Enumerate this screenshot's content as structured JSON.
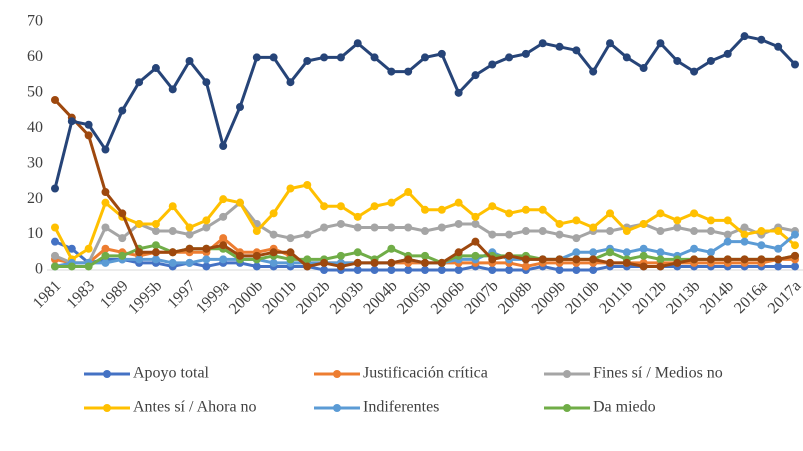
{
  "chart_data": {
    "type": "line",
    "categories": [
      "1981",
      null,
      "1983",
      null,
      "1989",
      null,
      "1995b",
      null,
      "1997",
      null,
      "1999a",
      null,
      "2000b",
      null,
      "2001b",
      null,
      "2002b",
      null,
      "2003b",
      null,
      "2004b",
      null,
      "2005b",
      null,
      "2006b",
      null,
      "2007b",
      null,
      "2008b",
      null,
      "2009b",
      null,
      "2010b",
      null,
      "2011b",
      null,
      "2012b",
      null,
      "2013b",
      null,
      "2014b",
      null,
      "2016a",
      null,
      "2017a"
    ],
    "ylim": [
      0,
      70
    ],
    "yticks": [
      0,
      10,
      20,
      30,
      40,
      50,
      60,
      70
    ],
    "grid": false,
    "legend": "bottom",
    "series": [
      {
        "name": "Apoyo total",
        "color": "#4472c4",
        "values": [
          8,
          6,
          2,
          3,
          3,
          2,
          2,
          1,
          2,
          1,
          2,
          2,
          1,
          1,
          1,
          1,
          0,
          0,
          0,
          0,
          0,
          0,
          0,
          0,
          0,
          1,
          0,
          0,
          0,
          1,
          0,
          0,
          0,
          1,
          1,
          1,
          1,
          1,
          1,
          1,
          1,
          1,
          1,
          1,
          1
        ]
      },
      {
        "name": "Justificación crítica",
        "color": "#ed7d31",
        "values": [
          3,
          2,
          2,
          6,
          5,
          4,
          5,
          5,
          5,
          5,
          9,
          5,
          5,
          6,
          4,
          2,
          2,
          2,
          2,
          2,
          2,
          2,
          2,
          2,
          2,
          2,
          2,
          2,
          1,
          2,
          2,
          2,
          2,
          2,
          2,
          2,
          2,
          2,
          2,
          2,
          2,
          2,
          2,
          3,
          3
        ]
      },
      {
        "name": "Fines sí / Medios no",
        "color": "#a5a5a5",
        "values": [
          4,
          2,
          2,
          12,
          9,
          13,
          11,
          11,
          10,
          12,
          15,
          19,
          13,
          10,
          9,
          10,
          12,
          13,
          12,
          12,
          12,
          12,
          11,
          12,
          13,
          13,
          10,
          10,
          11,
          11,
          10,
          9,
          11,
          11,
          12,
          13,
          11,
          12,
          11,
          11,
          10,
          12,
          10,
          12,
          11
        ]
      },
      {
        "name": "Antes sí / Ahora no",
        "color": "#ffc000",
        "values": [
          12,
          3,
          6,
          19,
          15,
          13,
          13,
          18,
          12,
          14,
          20,
          19,
          11,
          16,
          23,
          24,
          18,
          18,
          15,
          18,
          19,
          22,
          17,
          17,
          19,
          15,
          18,
          16,
          17,
          17,
          13,
          14,
          12,
          16,
          11,
          13,
          16,
          14,
          16,
          14,
          14,
          10,
          11,
          11,
          7
        ]
      },
      {
        "name": "Indiferentes",
        "color": "#5b9bd5",
        "values": [
          1,
          2,
          2,
          2,
          3,
          3,
          3,
          2,
          2,
          3,
          3,
          3,
          3,
          2,
          2,
          2,
          2,
          2,
          2,
          2,
          2,
          3,
          2,
          2,
          3,
          3,
          5,
          3,
          3,
          3,
          3,
          5,
          5,
          6,
          5,
          6,
          5,
          4,
          6,
          5,
          8,
          8,
          7,
          6,
          10
        ]
      },
      {
        "name": "Da miedo",
        "color": "#70ad47",
        "values": [
          1,
          1,
          1,
          4,
          4,
          6,
          7,
          5,
          6,
          6,
          6,
          3,
          3,
          4,
          3,
          3,
          3,
          4,
          5,
          3,
          6,
          4,
          4,
          2,
          4,
          4,
          4,
          4,
          4,
          3,
          3,
          3,
          3,
          5,
          3,
          4,
          3,
          3,
          3,
          3,
          3,
          3,
          3,
          3,
          4
        ]
      },
      {
        "color": "#9e480e",
        "values": [
          48,
          43,
          38,
          22,
          16,
          5,
          5,
          5,
          6,
          6,
          7,
          4,
          4,
          5,
          5,
          1,
          2,
          1,
          2,
          2,
          2,
          3,
          2,
          2,
          5,
          8,
          3,
          4,
          3,
          3,
          3,
          3,
          3,
          2,
          2,
          1,
          1,
          2,
          3,
          3,
          3,
          3,
          3,
          3,
          4
        ]
      },
      {
        "color": "#264478",
        "values": [
          23,
          42,
          41,
          34,
          45,
          53,
          57,
          51,
          59,
          53,
          35,
          46,
          60,
          60,
          53,
          59,
          60,
          60,
          64,
          60,
          56,
          56,
          60,
          61,
          50,
          55,
          58,
          60,
          61,
          64,
          63,
          62,
          56,
          64,
          60,
          57,
          64,
          59,
          56,
          59,
          61,
          66,
          65,
          63,
          58
        ]
      }
    ]
  }
}
